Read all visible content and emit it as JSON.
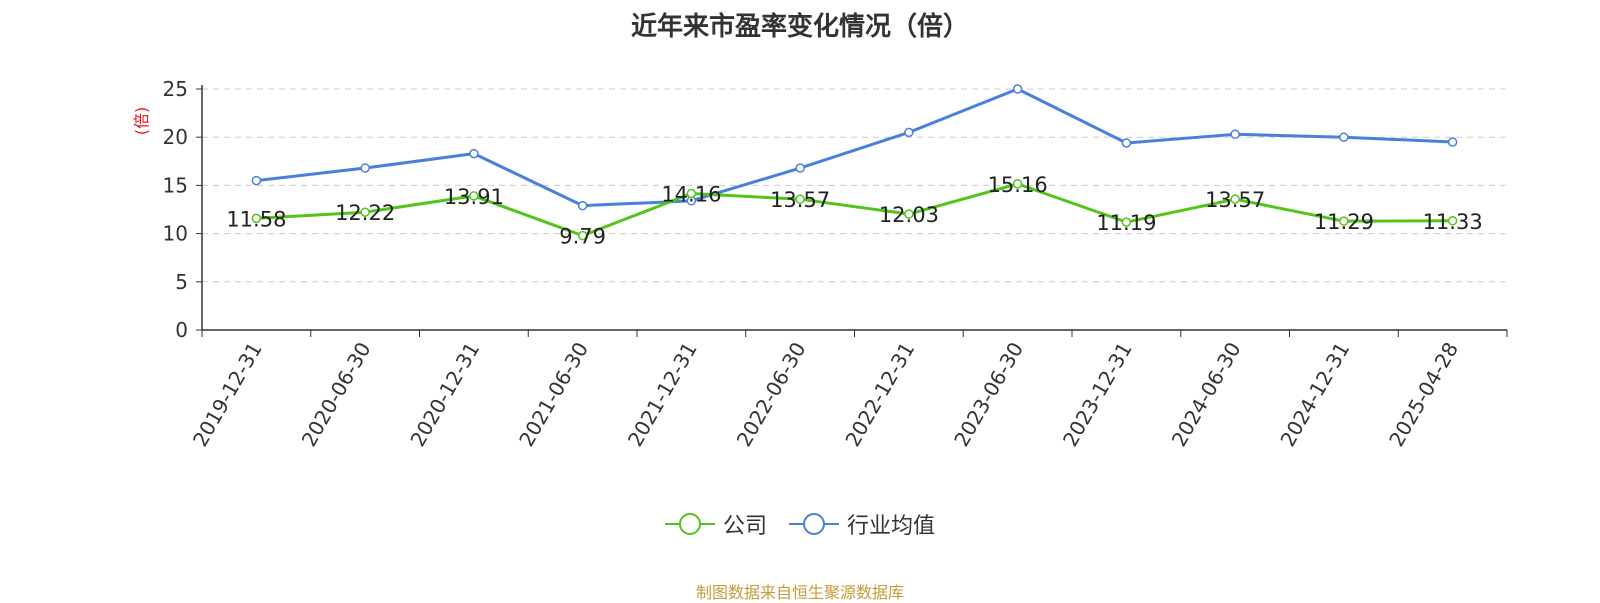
{
  "title": "近年来市盈率变化情况（倍）",
  "source_note": "制图数据来自恒生聚源数据库",
  "colors": {
    "company": "#52c41a",
    "industry": "#4a7fdc",
    "unit_label": "#e8141b"
  },
  "chart_data": {
    "type": "line",
    "title": "近年来市盈率变化情况（倍）",
    "ylabel": "(倍)",
    "ylim": [
      0,
      25
    ],
    "yticks": [
      0,
      5,
      10,
      15,
      20,
      25
    ],
    "grid": true,
    "legend_position": "bottom-center",
    "categories": [
      "2019-12-31",
      "2020-06-30",
      "2020-12-31",
      "2021-06-30",
      "2021-12-31",
      "2022-06-30",
      "2022-12-31",
      "2023-06-30",
      "2023-12-31",
      "2024-06-30",
      "2024-12-31",
      "2025-04-28"
    ],
    "series": [
      {
        "name": "公司",
        "color": "#52c41a",
        "show_labels": true,
        "values": [
          11.58,
          12.22,
          13.91,
          9.79,
          14.16,
          13.57,
          12.03,
          15.16,
          11.19,
          13.57,
          11.29,
          11.33
        ]
      },
      {
        "name": "行业均值",
        "color": "#4a7fdc",
        "show_labels": false,
        "values": [
          15.5,
          16.8,
          18.3,
          12.9,
          13.4,
          16.8,
          20.5,
          25.0,
          19.4,
          20.3,
          20.0,
          19.5
        ]
      }
    ]
  }
}
